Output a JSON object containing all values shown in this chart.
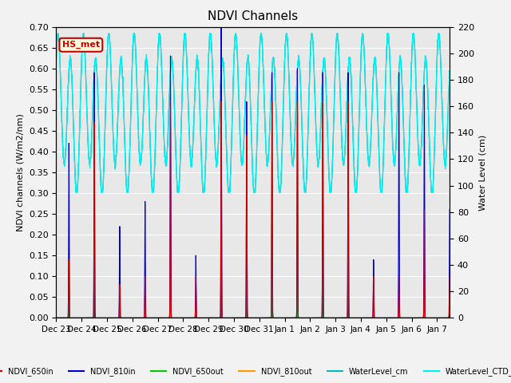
{
  "title": "NDVI Channels",
  "ylabel_left": "NDVI channels (W/m2/nm)",
  "ylabel_right": "Water Level (cm)",
  "ylim_left": [
    0.0,
    0.7
  ],
  "ylim_right": [
    0,
    220
  ],
  "yticks_left": [
    0.0,
    0.05,
    0.1,
    0.15,
    0.2,
    0.25,
    0.3,
    0.35,
    0.4,
    0.45,
    0.5,
    0.55,
    0.6,
    0.65,
    0.7
  ],
  "yticks_right": [
    0,
    20,
    40,
    60,
    80,
    100,
    120,
    140,
    160,
    180,
    200,
    220
  ],
  "colors": {
    "NDVI_650in": "#cc0000",
    "NDVI_810in": "#0000cc",
    "NDVI_650out": "#00cc00",
    "NDVI_810out": "#ff9900",
    "WaterLevel_cm": "#00bbbb",
    "WaterLevel_CTD_cm": "#00eeee"
  },
  "annotation_text": "HS_met",
  "annotation_bg": "lightyellow",
  "annotation_edge": "#cc0000",
  "background_color": "#e8e8e8",
  "plot_bg_top": "#d8d8d8",
  "grid_color": "#ffffff"
}
